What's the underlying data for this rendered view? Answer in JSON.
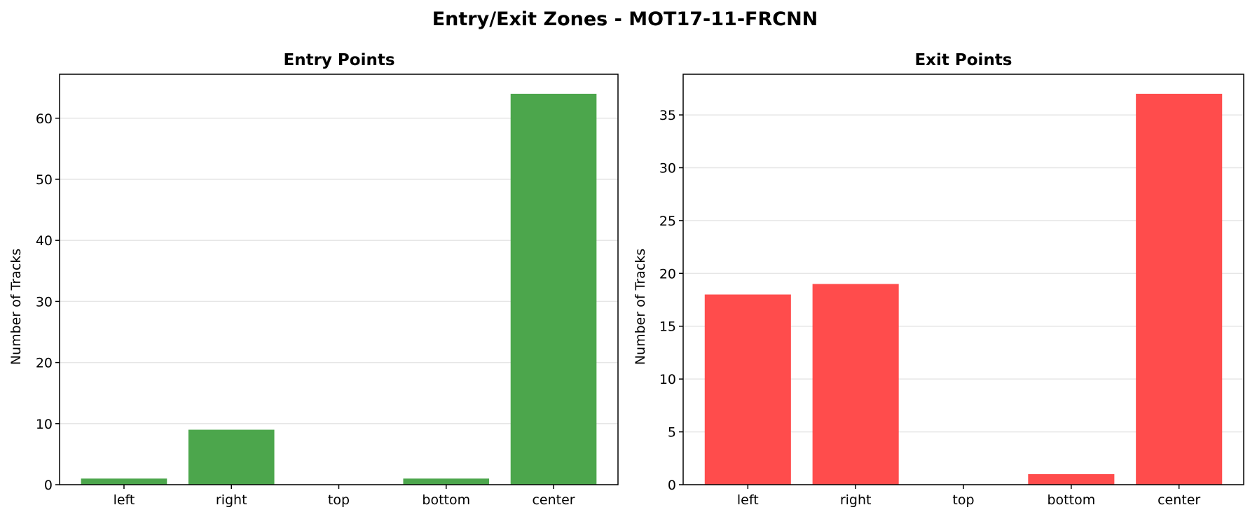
{
  "figure": {
    "title": "Entry/Exit Zones - MOT17-11-FRCNN"
  },
  "chart_data": [
    {
      "type": "bar",
      "title": "Entry Points",
      "xlabel": "",
      "ylabel": "Number of Tracks",
      "categories": [
        "left",
        "right",
        "top",
        "bottom",
        "center"
      ],
      "values": [
        1,
        9,
        0,
        1,
        64
      ],
      "ylim": [
        0,
        67.2
      ],
      "yticks": [
        0,
        10,
        20,
        30,
        40,
        50,
        60
      ],
      "color": "#4ca64c",
      "grid": "y"
    },
    {
      "type": "bar",
      "title": "Exit Points",
      "xlabel": "",
      "ylabel": "Number of Tracks",
      "categories": [
        "left",
        "right",
        "top",
        "bottom",
        "center"
      ],
      "values": [
        18,
        19,
        0,
        1,
        37
      ],
      "ylim": [
        0,
        38.85
      ],
      "yticks": [
        0,
        5,
        10,
        15,
        20,
        25,
        30,
        35
      ],
      "color": "#ff4c4c",
      "grid": "y"
    }
  ]
}
